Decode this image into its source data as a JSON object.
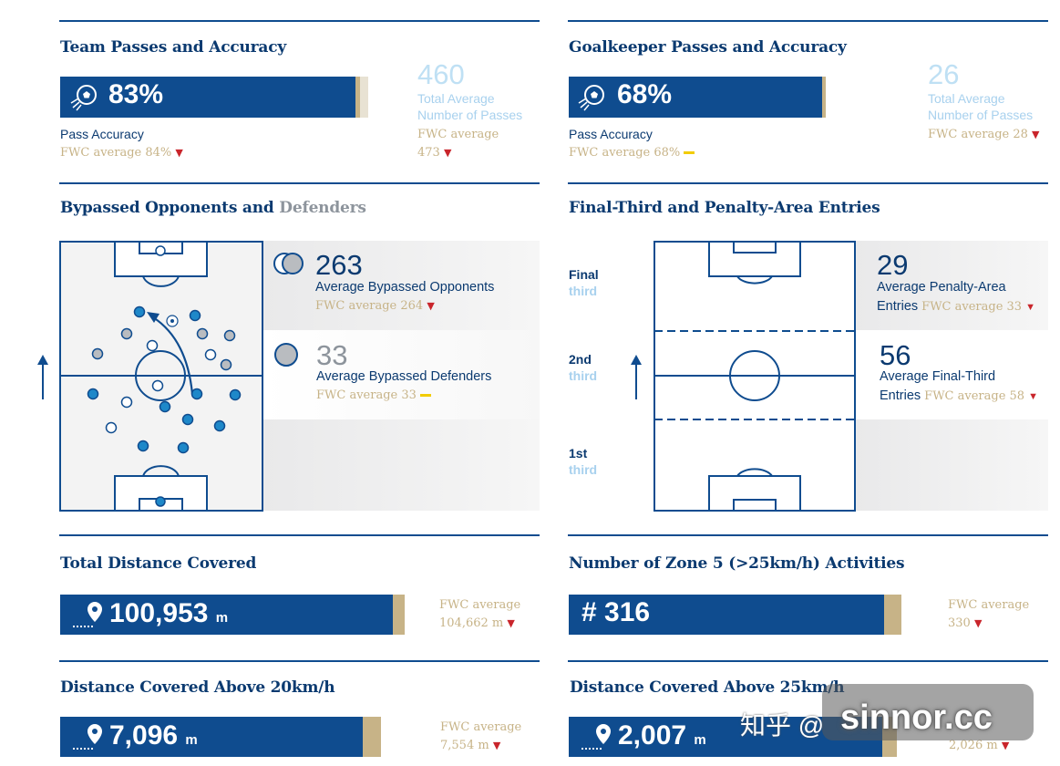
{
  "team_passes": {
    "title": "Team Passes and Accuracy",
    "accuracy": "83%",
    "accuracy_fill": 0.83,
    "accuracy_label": "Pass Accuracy",
    "accuracy_fwc": "FWC average 84%",
    "total": "460",
    "total_label_1": "Total Average",
    "total_label_2": "Number of Passes",
    "total_fwc_1": "FWC average",
    "total_fwc_2": "473"
  },
  "gk_passes": {
    "title": "Goalkeeper Passes and Accuracy",
    "accuracy": "68%",
    "accuracy_fill": 0.68,
    "accuracy_label": "Pass Accuracy",
    "accuracy_fwc": "FWC average 68%",
    "total": "26",
    "total_label_1": "Total Average",
    "total_label_2": "Number of Passes",
    "total_fwc": "FWC average 28"
  },
  "bypassed": {
    "title_main": "Bypassed Opponents and",
    "title_grey": "Defenders",
    "opponents_value": "263",
    "opponents_label": "Average Bypassed Opponents",
    "opponents_fwc": "FWC average 264",
    "defenders_value": "33",
    "defenders_label": "Average Bypassed Defenders",
    "defenders_fwc": "FWC average 33"
  },
  "entries": {
    "title": "Final-Third and Penalty-Area Entries",
    "zone_final": "Final",
    "zone_2nd": "2nd",
    "zone_1st": "1st",
    "zone_word": "third",
    "penalty_value": "29",
    "penalty_label_1": "Average Penalty-Area",
    "penalty_label_2": "Entries",
    "penalty_fwc": "FWC average 33",
    "final_value": "56",
    "final_label_1": "Average Final-Third",
    "final_label_2": "Entries",
    "final_fwc": "FWC average 58"
  },
  "total_distance": {
    "title": "Total Distance Covered",
    "value": "100,953",
    "unit": "m",
    "fwc_1": "FWC average",
    "fwc_2": "104,662 m"
  },
  "zone5": {
    "title": "Number of Zone 5 (>25km/h) Activities",
    "value": "# 316",
    "fwc_1": "FWC average",
    "fwc_2": "330"
  },
  "dist20": {
    "title": "Distance Covered Above 20km/h",
    "value": "7,096",
    "unit": "m",
    "fwc_1": "FWC average",
    "fwc_2": "7,554 m"
  },
  "dist25": {
    "title": "Distance Covered Above 25km/h",
    "value": "2,007",
    "unit": "m",
    "fwc_2": "2,026 m"
  },
  "watermark": {
    "text": "sinnor.cc",
    "cn": "知乎 @"
  },
  "colors": {
    "navy": "#0f4c8f",
    "gold": "#c7b387",
    "light_blue": "#a8d1ee",
    "down_red": "#c9252b",
    "equal_yellow": "#f2cc00"
  }
}
